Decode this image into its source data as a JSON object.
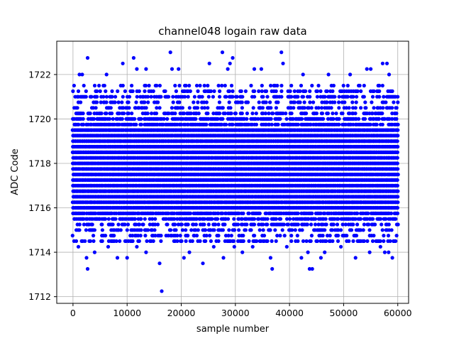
{
  "chart_data": {
    "type": "scatter",
    "title": "channel048 logain raw data",
    "xlabel": "sample number",
    "ylabel": "ADC Code",
    "xlim": [
      -3000,
      62000
    ],
    "ylim": [
      1711.7,
      1723.5
    ],
    "xticks": [
      0,
      10000,
      20000,
      30000,
      40000,
      50000,
      60000
    ],
    "xtick_labels": [
      "0",
      "10000",
      "20000",
      "30000",
      "40000",
      "50000",
      "60000"
    ],
    "yticks": [
      1712,
      1714,
      1716,
      1718,
      1720,
      1722
    ],
    "ytick_labels": [
      "1712",
      "1714",
      "1716",
      "1718",
      "1720",
      "1722"
    ],
    "grid": true,
    "marker_color": "#0000ff",
    "sample_count": 60000,
    "step": 0.25,
    "dense_band": [
      1714.75,
      1720.75
    ],
    "outliers": [
      [
        16400,
        1712.25
      ],
      [
        2700,
        1713.25
      ],
      [
        36800,
        1713.25
      ],
      [
        43700,
        1713.25
      ],
      [
        44200,
        1713.25
      ],
      [
        16000,
        1713.5
      ],
      [
        24000,
        1713.5
      ],
      [
        2500,
        1713.75
      ],
      [
        8200,
        1713.75
      ],
      [
        10000,
        1713.75
      ],
      [
        20500,
        1713.75
      ],
      [
        27800,
        1713.75
      ],
      [
        36500,
        1713.75
      ],
      [
        42200,
        1713.75
      ],
      [
        45800,
        1713.75
      ],
      [
        52200,
        1713.75
      ],
      [
        59000,
        1713.75
      ],
      [
        4000,
        1714.0
      ],
      [
        13500,
        1714.0
      ],
      [
        21500,
        1714.0
      ],
      [
        31300,
        1714.0
      ],
      [
        43400,
        1714.0
      ],
      [
        46500,
        1714.0
      ],
      [
        54800,
        1714.0
      ],
      [
        57600,
        1714.0
      ],
      [
        58300,
        1714.0
      ],
      [
        1000,
        1714.25
      ],
      [
        6500,
        1714.25
      ],
      [
        11800,
        1714.25
      ],
      [
        26000,
        1714.25
      ],
      [
        29800,
        1714.25
      ],
      [
        33200,
        1714.25
      ],
      [
        39500,
        1714.25
      ],
      [
        49500,
        1714.25
      ],
      [
        56800,
        1714.25
      ],
      [
        2700,
        1722.75
      ],
      [
        11200,
        1722.75
      ],
      [
        29500,
        1722.75
      ],
      [
        18000,
        1723.0
      ],
      [
        27600,
        1723.0
      ],
      [
        38500,
        1723.0
      ],
      [
        9200,
        1722.5
      ],
      [
        25200,
        1722.5
      ],
      [
        29000,
        1722.5
      ],
      [
        38800,
        1722.5
      ],
      [
        57200,
        1722.5
      ],
      [
        58000,
        1722.5
      ],
      [
        1200,
        1722.0
      ],
      [
        1700,
        1722.0
      ],
      [
        6200,
        1722.0
      ],
      [
        11800,
        1722.25
      ],
      [
        13500,
        1722.25
      ],
      [
        18300,
        1722.25
      ],
      [
        19500,
        1722.25
      ],
      [
        28600,
        1722.25
      ],
      [
        33500,
        1722.25
      ],
      [
        34800,
        1722.25
      ],
      [
        42500,
        1722.0
      ],
      [
        47200,
        1722.0
      ],
      [
        51200,
        1722.0
      ],
      [
        54300,
        1722.25
      ],
      [
        55000,
        1722.25
      ],
      [
        58400,
        1722.0
      ]
    ]
  }
}
